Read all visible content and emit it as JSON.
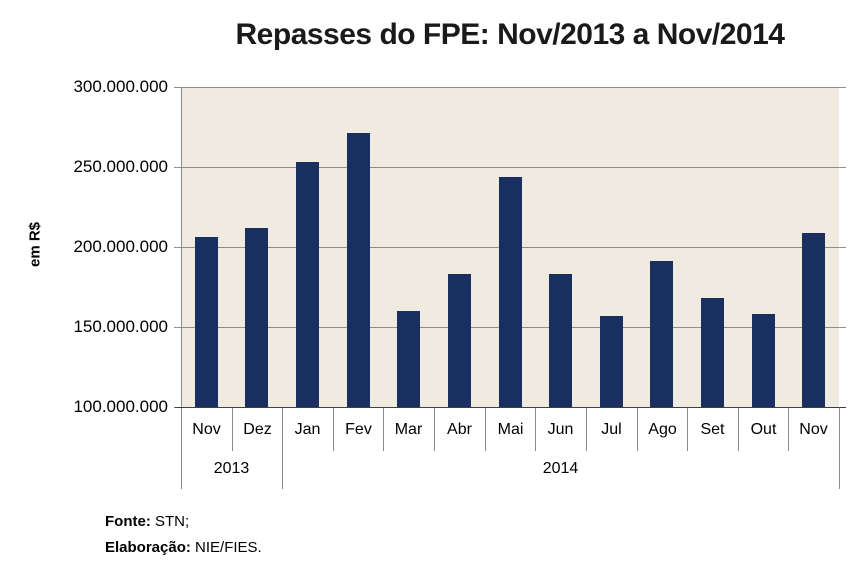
{
  "chart_data": {
    "type": "bar",
    "title": "Repasses do FPE: Nov/2013 a Nov/2014",
    "xlabel": "",
    "ylabel": "em R$",
    "ylim": [
      100000000,
      300000000
    ],
    "ytick_step": 50000000,
    "yticks": [
      {
        "value": 300000000,
        "label": "300.000.000"
      },
      {
        "value": 250000000,
        "label": "250.000.000"
      },
      {
        "value": 200000000,
        "label": "200.000.000"
      },
      {
        "value": 150000000,
        "label": "150.000.000"
      },
      {
        "value": 100000000,
        "label": "100.000.000"
      }
    ],
    "categories": [
      "Nov",
      "Dez",
      "Jan",
      "Fev",
      "Mar",
      "Abr",
      "Mai",
      "Jun",
      "Jul",
      "Ago",
      "Set",
      "Out",
      "Nov"
    ],
    "values": [
      206000000,
      212000000,
      253000000,
      271000000,
      160000000,
      183000000,
      244000000,
      183000000,
      157000000,
      191000000,
      168000000,
      158000000,
      209000000
    ],
    "year_groups": [
      {
        "label": "2013",
        "count": 2
      },
      {
        "label": "2014",
        "count": 11
      }
    ],
    "grid": true,
    "legend": false
  },
  "footer": {
    "fonte_label": "Fonte:",
    "fonte_value": " STN;",
    "elaboracao_label": "Elaboração:",
    "elaboracao_value": " NIE/FIES."
  },
  "colors": {
    "bar": "#192F5F",
    "plot_bg": "#EFEBE0",
    "gridline": "#8E8E88",
    "axis_bottom": "#3F3F3F",
    "title_text": "#1A1A1A"
  }
}
